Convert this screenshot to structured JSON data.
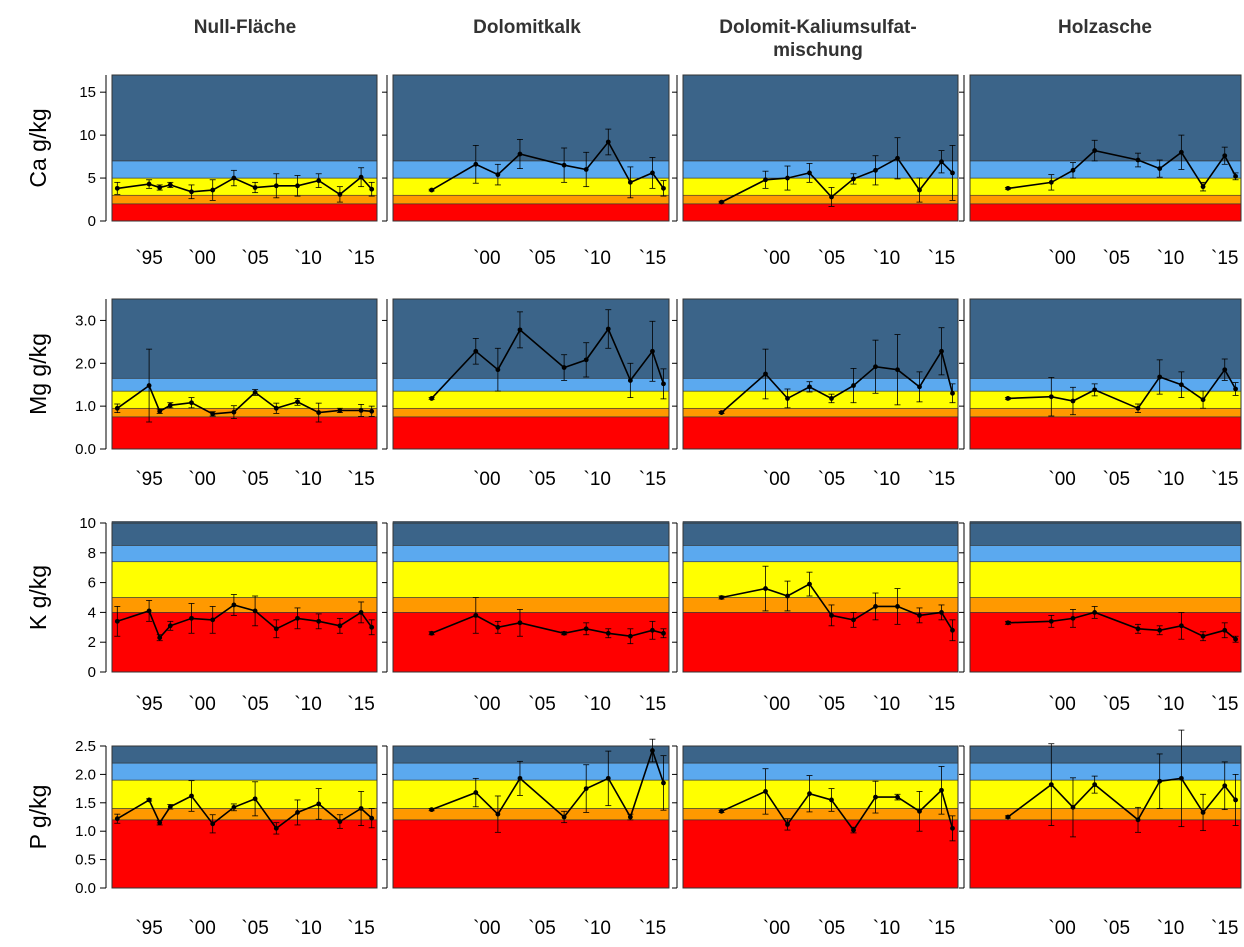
{
  "chart_data": {
    "type": "line",
    "columns": [
      "Null-Fläche",
      "Dolomitkalk",
      "Dolomit-Kaliumsulfat-\nmischung",
      "Holzasche"
    ],
    "colors": {
      "dark_blue": "#3b6489",
      "light_blue": "#5ba9ef",
      "yellow": "#ffff00",
      "orange": "#ff9900",
      "red": "#ff0000",
      "line": "#000000"
    },
    "x_tick_labels": {
      "Null-Fläche": [
        "`95",
        "`00",
        "`05",
        "`10",
        "`15"
      ],
      "Dolomitkalk": [
        "`00",
        "`05",
        "`10",
        "`15"
      ],
      "Dolomit-Kaliumsulfat-\nmischung": [
        "`00",
        "`05",
        "`10",
        "`15"
      ],
      "Holzasche": [
        "`00",
        "`05",
        "`10",
        "`15"
      ]
    },
    "rows": [
      {
        "ylabel": "Ca g/kg",
        "ylim": [
          0,
          17
        ],
        "yticks": [
          0,
          5,
          10,
          15
        ],
        "ytick_labels": [
          "0",
          "5",
          "10",
          "15"
        ],
        "bands": [
          [
            0,
            2,
            "red"
          ],
          [
            2,
            3,
            "orange"
          ],
          [
            3,
            5,
            "yellow"
          ],
          [
            5,
            7,
            "light_blue"
          ],
          [
            7,
            17,
            "dark_blue"
          ]
        ],
        "panels": [
          {
            "x": [
              1992,
              1995,
              1996,
              1997,
              1999,
              2001,
              2003,
              2005,
              2007,
              2009,
              2011,
              2013,
              2015,
              2016
            ],
            "y": [
              3.8,
              4.3,
              3.9,
              4.2,
              3.4,
              3.6,
              5.0,
              3.9,
              4.1,
              4.1,
              4.7,
              3.1,
              5.1,
              3.7
            ],
            "err": [
              0.7,
              0.5,
              0.3,
              0.3,
              0.8,
              1.2,
              0.9,
              0.6,
              1.4,
              1.2,
              0.8,
              0.9,
              1.1,
              0.8
            ]
          },
          {
            "x": [
              1995,
              1999,
              2001,
              2003,
              2007,
              2009,
              2011,
              2013,
              2015,
              2016
            ],
            "y": [
              3.6,
              6.6,
              5.4,
              7.8,
              6.5,
              6.0,
              9.2,
              4.5,
              5.6,
              3.8
            ],
            "err": [
              0.1,
              2.2,
              1.2,
              1.7,
              2.0,
              2.0,
              1.5,
              1.8,
              1.8,
              0.9
            ]
          },
          {
            "x": [
              1995,
              1999,
              2001,
              2003,
              2005,
              2007,
              2009,
              2011,
              2013,
              2015,
              2016
            ],
            "y": [
              2.2,
              4.8,
              5.0,
              5.6,
              2.8,
              4.9,
              5.9,
              7.3,
              3.6,
              6.9,
              5.6
            ],
            "err": [
              0.1,
              1.0,
              1.4,
              1.1,
              1.1,
              0.6,
              1.7,
              2.4,
              1.4,
              1.3,
              3.2
            ]
          },
          {
            "x": [
              1995,
              1999,
              2001,
              2003,
              2007,
              2009,
              2011,
              2013,
              2015,
              2016
            ],
            "y": [
              3.8,
              4.5,
              5.9,
              8.2,
              7.1,
              6.1,
              8.0,
              4.0,
              7.6,
              5.2
            ],
            "err": [
              0.1,
              0.9,
              0.9,
              1.2,
              0.8,
              1.0,
              2.0,
              0.5,
              1.0,
              0.4
            ]
          }
        ]
      },
      {
        "ylabel": "Mg g/kg",
        "ylim": [
          0,
          3.5
        ],
        "yticks": [
          0,
          1,
          2,
          3
        ],
        "ytick_labels": [
          "0.0",
          "1.0",
          "2.0",
          "3.0"
        ],
        "bands": [
          [
            0,
            0.75,
            "red"
          ],
          [
            0.75,
            0.95,
            "orange"
          ],
          [
            0.95,
            1.35,
            "yellow"
          ],
          [
            1.35,
            1.65,
            "light_blue"
          ],
          [
            1.65,
            3.5,
            "dark_blue"
          ]
        ],
        "panels": [
          {
            "x": [
              1992,
              1995,
              1996,
              1997,
              1999,
              2001,
              2003,
              2005,
              2007,
              2009,
              2011,
              2013,
              2015,
              2016
            ],
            "y": [
              0.95,
              1.48,
              0.88,
              1.02,
              1.08,
              0.82,
              0.86,
              1.32,
              0.95,
              1.1,
              0.85,
              0.9,
              0.9,
              0.88
            ],
            "err": [
              0.1,
              0.85,
              0.05,
              0.06,
              0.12,
              0.05,
              0.15,
              0.07,
              0.12,
              0.08,
              0.22,
              0.05,
              0.14,
              0.12
            ]
          },
          {
            "x": [
              1995,
              1999,
              2001,
              2003,
              2007,
              2009,
              2011,
              2013,
              2015,
              2016
            ],
            "y": [
              1.18,
              2.28,
              1.85,
              2.78,
              1.9,
              2.08,
              2.8,
              1.6,
              2.28,
              1.52
            ],
            "err": [
              0.02,
              0.3,
              0.5,
              0.42,
              0.3,
              0.4,
              0.45,
              0.4,
              0.7,
              0.35
            ]
          },
          {
            "x": [
              1995,
              1999,
              2001,
              2003,
              2005,
              2007,
              2009,
              2011,
              2013,
              2015,
              2016
            ],
            "y": [
              0.85,
              1.75,
              1.18,
              1.45,
              1.18,
              1.48,
              1.92,
              1.85,
              1.45,
              2.28,
              1.3
            ],
            "err": [
              0.02,
              0.58,
              0.22,
              0.12,
              0.1,
              0.4,
              0.62,
              0.82,
              0.35,
              0.55,
              0.22
            ]
          },
          {
            "x": [
              1995,
              1999,
              2001,
              2003,
              2007,
              2009,
              2011,
              2013,
              2015,
              2016
            ],
            "y": [
              1.18,
              1.22,
              1.12,
              1.38,
              0.95,
              1.68,
              1.5,
              1.15,
              1.85,
              1.4
            ],
            "err": [
              0.02,
              0.45,
              0.32,
              0.14,
              0.1,
              0.4,
              0.3,
              0.2,
              0.25,
              0.15
            ]
          }
        ]
      },
      {
        "ylabel": "K g/kg",
        "ylim": [
          0,
          10
        ],
        "yticks": [
          0,
          2,
          4,
          6,
          8,
          10
        ],
        "ytick_labels": [
          "0",
          "2",
          "4",
          "6",
          "8",
          "10"
        ],
        "bands": [
          [
            0,
            4,
            "red"
          ],
          [
            4,
            5,
            "orange"
          ],
          [
            5,
            7.4,
            "yellow"
          ],
          [
            7.4,
            8.5,
            "light_blue"
          ],
          [
            8.5,
            10.1,
            "dark_blue"
          ]
        ],
        "panels": [
          {
            "x": [
              1992,
              1995,
              1996,
              1997,
              1999,
              2001,
              2003,
              2005,
              2007,
              2009,
              2011,
              2013,
              2015,
              2016
            ],
            "y": [
              3.4,
              4.1,
              2.3,
              3.1,
              3.6,
              3.5,
              4.5,
              4.1,
              2.9,
              3.6,
              3.4,
              3.1,
              4.0,
              3.0
            ],
            "err": [
              1.0,
              0.7,
              0.2,
              0.3,
              1.0,
              0.9,
              0.7,
              1.0,
              0.6,
              0.7,
              0.5,
              0.5,
              0.7,
              0.5
            ]
          },
          {
            "x": [
              1995,
              1999,
              2001,
              2003,
              2007,
              2009,
              2011,
              2013,
              2015,
              2016
            ],
            "y": [
              2.6,
              3.8,
              3.0,
              3.3,
              2.6,
              2.9,
              2.6,
              2.4,
              2.8,
              2.6
            ],
            "err": [
              0.1,
              1.2,
              0.4,
              0.9,
              0.1,
              0.4,
              0.3,
              0.5,
              0.6,
              0.3
            ]
          },
          {
            "x": [
              1995,
              1999,
              2001,
              2003,
              2005,
              2007,
              2009,
              2011,
              2013,
              2015,
              2016
            ],
            "y": [
              5.0,
              5.6,
              5.1,
              5.9,
              3.8,
              3.5,
              4.4,
              4.4,
              3.8,
              4.0,
              2.8
            ],
            "err": [
              0.1,
              1.5,
              1.0,
              0.8,
              0.7,
              0.5,
              0.9,
              1.2,
              0.5,
              0.5,
              0.7
            ]
          },
          {
            "x": [
              1995,
              1999,
              2001,
              2003,
              2007,
              2009,
              2011,
              2013,
              2015,
              2016
            ],
            "y": [
              3.3,
              3.4,
              3.6,
              4.0,
              2.9,
              2.8,
              3.1,
              2.4,
              2.8,
              2.2
            ],
            "err": [
              0.1,
              0.4,
              0.6,
              0.4,
              0.3,
              0.3,
              0.9,
              0.3,
              0.5,
              0.2
            ]
          }
        ]
      },
      {
        "ylabel": "P g/kg",
        "ylim": [
          0,
          2.5
        ],
        "yticks": [
          0,
          0.5,
          1,
          1.5,
          2,
          2.5
        ],
        "ytick_labels": [
          "0.0",
          "0.5",
          "1.0",
          "1.5",
          "2.0",
          "2.5"
        ],
        "bands": [
          [
            0,
            1.2,
            "red"
          ],
          [
            1.2,
            1.4,
            "orange"
          ],
          [
            1.4,
            1.9,
            "yellow"
          ],
          [
            1.9,
            2.2,
            "light_blue"
          ],
          [
            2.2,
            2.5,
            "dark_blue"
          ]
        ],
        "panels": [
          {
            "x": [
              1992,
              1995,
              1996,
              1997,
              1999,
              2001,
              2003,
              2005,
              2007,
              2009,
              2011,
              2013,
              2015,
              2016
            ],
            "y": [
              1.22,
              1.55,
              1.15,
              1.43,
              1.62,
              1.13,
              1.42,
              1.57,
              1.05,
              1.33,
              1.48,
              1.17,
              1.4,
              1.23
            ],
            "err": [
              0.08,
              0.02,
              0.04,
              0.04,
              0.27,
              0.16,
              0.06,
              0.3,
              0.1,
              0.22,
              0.27,
              0.12,
              0.3,
              0.17
            ]
          },
          {
            "x": [
              1995,
              1999,
              2001,
              2003,
              2007,
              2009,
              2011,
              2013,
              2015,
              2016
            ],
            "y": [
              1.38,
              1.68,
              1.3,
              1.93,
              1.25,
              1.75,
              1.93,
              1.25,
              2.42,
              1.85
            ],
            "err": [
              0.02,
              0.25,
              0.32,
              0.3,
              0.1,
              0.42,
              0.48,
              0.05,
              0.2,
              0.48
            ]
          },
          {
            "x": [
              1995,
              1999,
              2001,
              2003,
              2005,
              2007,
              2009,
              2011,
              2013,
              2015,
              2016
            ],
            "y": [
              1.35,
              1.7,
              1.12,
              1.66,
              1.55,
              1.02,
              1.6,
              1.6,
              1.35,
              1.72,
              1.05
            ],
            "err": [
              0.02,
              0.4,
              0.1,
              0.32,
              0.2,
              0.05,
              0.28,
              0.05,
              0.35,
              0.42,
              0.22
            ]
          },
          {
            "x": [
              1995,
              1999,
              2001,
              2003,
              2007,
              2009,
              2011,
              2013,
              2015,
              2016
            ],
            "y": [
              1.25,
              1.82,
              1.42,
              1.82,
              1.2,
              1.88,
              1.93,
              1.33,
              1.8,
              1.55
            ],
            "err": [
              0.02,
              0.72,
              0.52,
              0.15,
              0.22,
              0.48,
              0.85,
              0.32,
              0.42,
              0.45
            ]
          }
        ]
      }
    ]
  }
}
